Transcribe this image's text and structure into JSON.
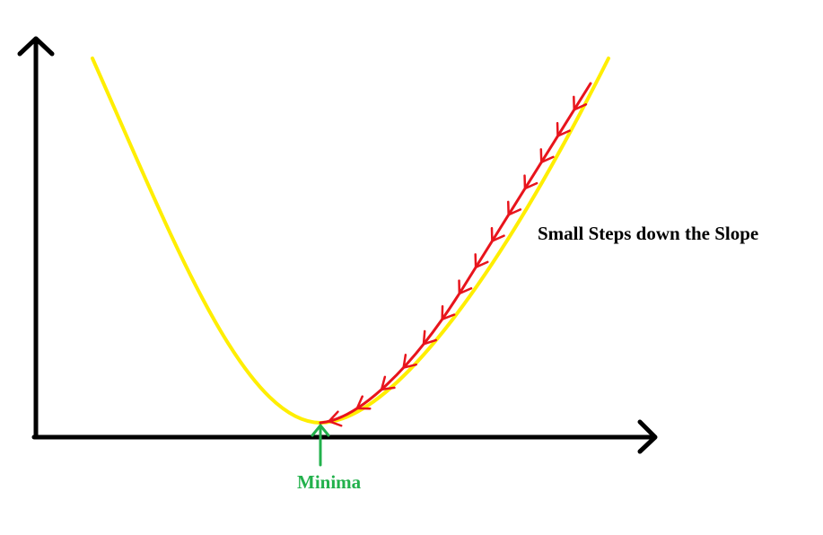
{
  "annotations": {
    "steps_label": "Small Steps down the Slope",
    "minimum_label": "Minima"
  },
  "colors": {
    "axes": "#000000",
    "curve": "#ffee00",
    "path": "#e8141c",
    "minimum": "#22b14c",
    "background": "#ffffff"
  },
  "icons": {
    "axis_heads": "chevron-arrow",
    "step_marks": "chevron-arrow",
    "minimum_pointer": "up-arrow"
  },
  "step_count": 14
}
